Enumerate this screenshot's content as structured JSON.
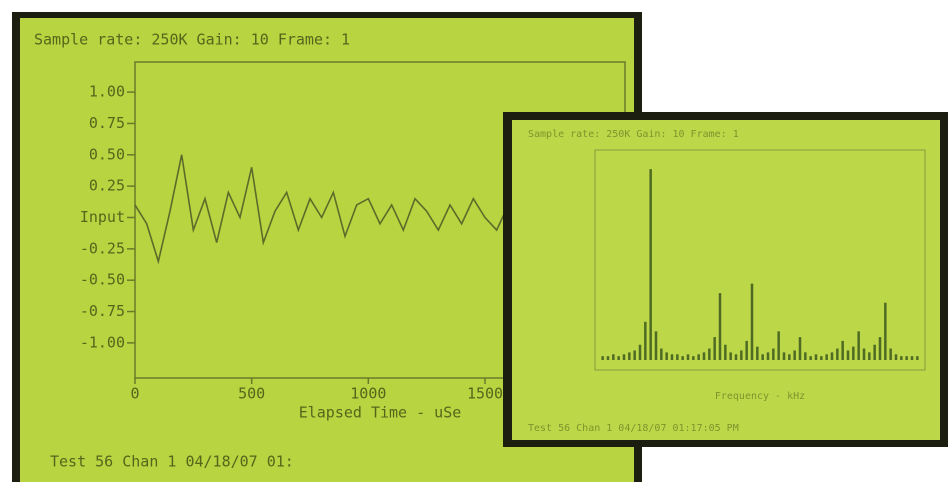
{
  "chart_data": [
    {
      "type": "line",
      "title": "Sample rate: 250K  Gain: 10    Frame: 1",
      "x_label": "Elapsed Time - uSe",
      "footer": "Test  56  Chan 1  04/18/07 01:",
      "color": "#5d6b2a",
      "xlim": [
        0,
        2100
      ],
      "xticks": [
        0,
        500,
        1000,
        1500
      ],
      "ylim": [
        -1.28,
        1.24
      ],
      "yticks": [
        {
          "value": 1,
          "label": "1.00"
        },
        {
          "value": 0.75,
          "label": "0.75"
        },
        {
          "value": 0.5,
          "label": "0.50"
        },
        {
          "value": 0.25,
          "label": "0.25"
        },
        {
          "value": 0,
          "label": "Input"
        },
        {
          "value": -0.25,
          "label": "-0.25"
        },
        {
          "value": -0.5,
          "label": "-0.50"
        },
        {
          "value": -0.75,
          "label": "-0.75"
        },
        {
          "value": -1,
          "label": "-1.00"
        }
      ],
      "x": [
        0,
        50,
        100,
        150,
        200,
        250,
        300,
        350,
        400,
        450,
        500,
        550,
        600,
        650,
        700,
        750,
        800,
        850,
        900,
        950,
        1000,
        1050,
        1100,
        1150,
        1200,
        1250,
        1300,
        1350,
        1400,
        1450,
        1500,
        1550,
        1600,
        1650,
        1700,
        1750,
        1800,
        1850,
        1900,
        1950,
        2000,
        2050,
        2100
      ],
      "values": [
        0.1,
        -0.05,
        -0.35,
        0.05,
        0.5,
        -0.1,
        0.15,
        -0.2,
        0.2,
        0.0,
        0.4,
        -0.2,
        0.05,
        0.2,
        -0.1,
        0.15,
        0.0,
        0.2,
        -0.15,
        0.1,
        0.15,
        -0.05,
        0.1,
        -0.1,
        0.15,
        0.05,
        -0.1,
        0.1,
        -0.05,
        0.15,
        0.0,
        -0.1,
        0.1,
        0.05,
        -0.05,
        0.15,
        0.0,
        -0.1,
        0.1,
        0.05,
        0.0,
        0.1,
        -0.05
      ]
    },
    {
      "type": "spectrum",
      "title": "Sample rate: 250K  Gain: 10   Frame: 1",
      "x_label": "Frequency - kHz",
      "footer": "Test  56  Chan 1  04/18/07 01:17:05 PM",
      "color": "#4f6a22",
      "ylim": [
        0,
        1.1
      ],
      "values": [
        0.02,
        0.02,
        0.03,
        0.02,
        0.03,
        0.04,
        0.05,
        0.08,
        0.2,
        1.0,
        0.15,
        0.06,
        0.04,
        0.03,
        0.03,
        0.02,
        0.03,
        0.02,
        0.03,
        0.04,
        0.06,
        0.12,
        0.35,
        0.08,
        0.04,
        0.03,
        0.05,
        0.1,
        0.4,
        0.07,
        0.03,
        0.04,
        0.06,
        0.15,
        0.04,
        0.03,
        0.05,
        0.12,
        0.04,
        0.02,
        0.03,
        0.02,
        0.03,
        0.04,
        0.06,
        0.1,
        0.05,
        0.07,
        0.15,
        0.06,
        0.04,
        0.08,
        0.12,
        0.3,
        0.06,
        0.03,
        0.02,
        0.02,
        0.02,
        0.02
      ]
    }
  ]
}
